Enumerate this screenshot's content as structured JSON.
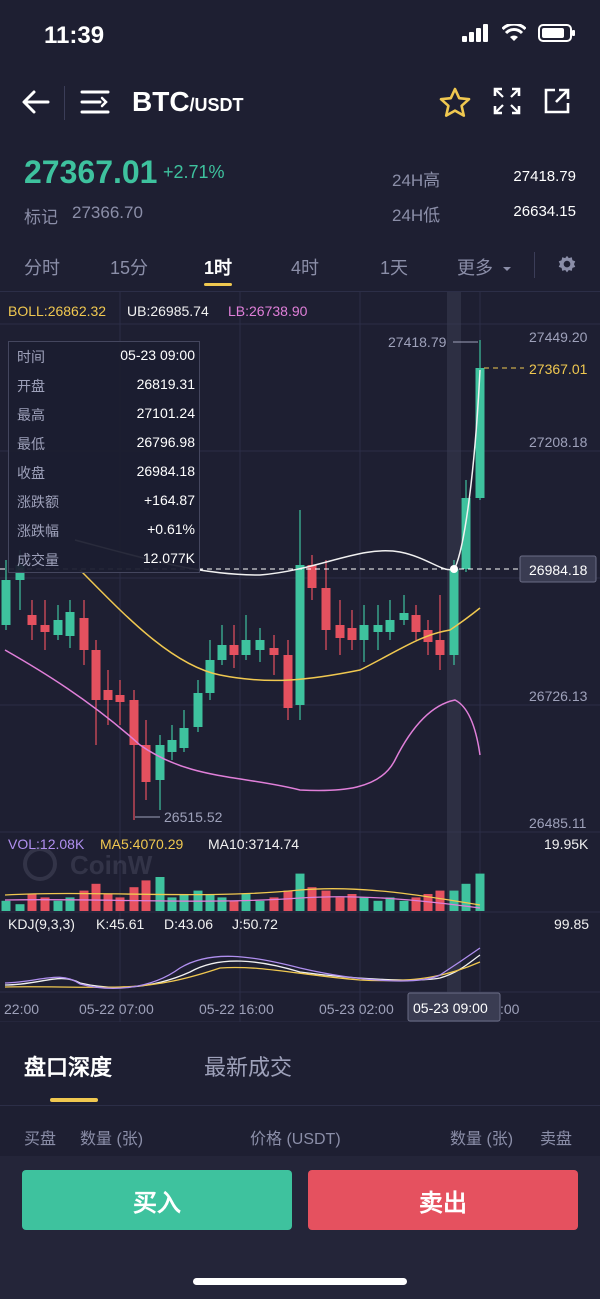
{
  "status_bar": {
    "time": "11:39"
  },
  "header": {
    "pair_base": "BTC",
    "pair_quote": "/USDT"
  },
  "price": {
    "last": "27367.01",
    "change_pct": "+2.71%",
    "mark_label": "标记",
    "mark_value": "27366.70",
    "high_label": "24H高",
    "high_value": "27418.79",
    "low_label": "24H低",
    "low_value": "26634.15"
  },
  "timeframes": {
    "items": [
      "分时",
      "15分",
      "1时",
      "4时",
      "1天",
      "更多"
    ],
    "active_index": 2
  },
  "boll": {
    "mid": "BOLL:26862.32",
    "ub": "UB:26985.74",
    "lb": "LB:26738.90"
  },
  "price_axis": [
    "27449.20",
    "27208.18",
    "26726.13",
    "26485.11"
  ],
  "markers": {
    "high": "27418.79",
    "current": "27367.01",
    "crosshair": "26984.18",
    "low": "26515.52"
  },
  "tooltip": {
    "rows": [
      {
        "k": "时间",
        "v": "05-23 09:00"
      },
      {
        "k": "开盘",
        "v": "26819.31"
      },
      {
        "k": "最高",
        "v": "27101.24"
      },
      {
        "k": "最低",
        "v": "26796.98"
      },
      {
        "k": "收盘",
        "v": "26984.18"
      },
      {
        "k": "涨跌额",
        "v": "+164.87"
      },
      {
        "k": "涨跌幅",
        "v": "+0.61%"
      },
      {
        "k": "成交量",
        "v": "12.077K"
      }
    ]
  },
  "volume": {
    "vol": "VOL:12.08K",
    "ma5": "MA5:4070.29",
    "ma10": "MA10:3714.74",
    "max": "19.95K"
  },
  "kdj": {
    "name": "KDJ(9,3,3)",
    "k": "K:45.61",
    "d": "D:43.06",
    "j": "J:50.72",
    "max": "99.85"
  },
  "time_axis": [
    "22:00",
    "05-22 07:00",
    "05-22 16:00",
    "05-23 02:00",
    "05-23 09:00",
    ":00"
  ],
  "watermark": "CoinW",
  "orderbook": {
    "tabs": [
      "盘口深度",
      "最新成交"
    ],
    "headers": {
      "bid": "买盘",
      "bid_qty": "数量 (张)",
      "price": "价格 (USDT)",
      "ask_qty": "数量 (张)",
      "ask": "卖盘"
    }
  },
  "actions": {
    "buy": "买入",
    "sell": "卖出"
  },
  "colors": {
    "up": "#3ec29e",
    "down": "#e5515f",
    "accent": "#f0c850",
    "bg": "#1e1f32"
  },
  "chart_data": {
    "type": "candlestick",
    "y_range": [
      26485.11,
      27449.2
    ],
    "volume_max": "19.95K",
    "kdj_max": "99.85"
  }
}
